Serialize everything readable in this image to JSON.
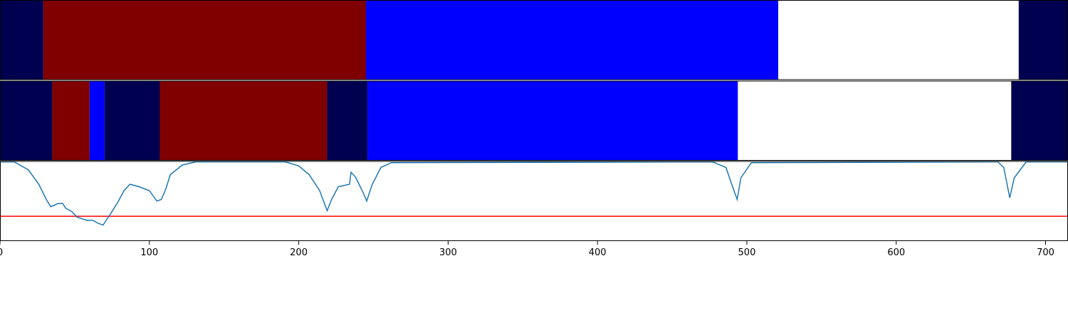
{
  "chart_data": [
    {
      "type": "segments",
      "xlim": [
        0,
        715
      ],
      "bounds": [
        0,
        29,
        245,
        521,
        682,
        715
      ],
      "colors": [
        "#000050",
        "#800000",
        "#0000ff",
        "#ffffff",
        "#000050"
      ]
    },
    {
      "type": "segments",
      "xlim": [
        0,
        715
      ],
      "bounds": [
        0,
        35,
        60,
        70,
        107,
        219,
        246,
        494,
        677,
        715
      ],
      "colors": [
        "#000050",
        "#800000",
        "#0000ff",
        "#000050",
        "#800000",
        "#000050",
        "#0000ff",
        "#ffffff",
        "#000050"
      ]
    },
    {
      "type": "line",
      "xlim": [
        0,
        715
      ],
      "ylim": [
        0,
        1
      ],
      "xticks": [
        0,
        100,
        200,
        300,
        400,
        500,
        600,
        700
      ],
      "color": "#1f77b4",
      "threshold": 0.31,
      "threshold_color": "#ff0000",
      "x": [
        0,
        9.5,
        19,
        26,
        31,
        34,
        39,
        42,
        44,
        48,
        51.5,
        58,
        62,
        66,
        69,
        74,
        79,
        83,
        87,
        93,
        100,
        105,
        108,
        111,
        114,
        122,
        131,
        191,
        200,
        207,
        214,
        219,
        222,
        226.5,
        234,
        235,
        238,
        243,
        245.5,
        249,
        255,
        262,
        477,
        486,
        491,
        493.5,
        496,
        503,
        668,
        672,
        676,
        679,
        687,
        715
      ],
      "values": [
        0.99,
        0.99,
        0.89,
        0.71,
        0.52,
        0.43,
        0.47,
        0.47,
        0.41,
        0.37,
        0.3,
        0.26,
        0.26,
        0.22,
        0.2,
        0.34,
        0.49,
        0.63,
        0.71,
        0.68,
        0.63,
        0.5,
        0.52,
        0.65,
        0.83,
        0.95,
        0.99,
        0.99,
        0.94,
        0.83,
        0.63,
        0.38,
        0.52,
        0.68,
        0.71,
        0.86,
        0.8,
        0.61,
        0.5,
        0.7,
        0.92,
        0.98,
        0.99,
        0.92,
        0.65,
        0.52,
        0.79,
        0.98,
        0.99,
        0.92,
        0.54,
        0.79,
        0.99,
        0.99
      ]
    }
  ]
}
